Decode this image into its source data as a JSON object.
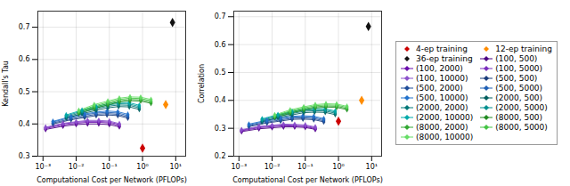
{
  "chart_data": [
    {
      "type": "line",
      "xlabel": "Computational Cost per Network (PFLOPs)",
      "ylabel": "Kendall's Tau",
      "log": "x",
      "xlim": [
        0.0007,
        20
      ],
      "xticks": [
        {
          "value": 0.001,
          "label": "10⁻³"
        },
        {
          "value": 0.01,
          "label": "10⁻²"
        },
        {
          "value": 0.1,
          "label": "10⁻¹"
        },
        {
          "value": 1,
          "label": "10⁰"
        },
        {
          "value": 10,
          "label": "10¹"
        }
      ],
      "ylim": [
        0.3,
        0.75
      ],
      "yticks": [
        0.3,
        0.4,
        0.5,
        0.6,
        0.7
      ],
      "grid": true,
      "marker": "diamond",
      "series": [
        {
          "name": "4-ep training",
          "type": "scatter",
          "color": "#cc0000",
          "x": [
            1.0
          ],
          "values": [
            0.325
          ]
        },
        {
          "name": "12-ep training",
          "type": "scatter",
          "color": "#ff8c00",
          "x": [
            5.0
          ],
          "values": [
            0.46
          ]
        },
        {
          "name": "36-ep training",
          "type": "scatter",
          "color": "#111111",
          "x": [
            8.0
          ],
          "values": [
            0.715
          ]
        },
        {
          "name": "(100, 500)",
          "type": "line",
          "color": "#4b0082",
          "x": [
            0.0012,
            0.004,
            0.01,
            0.022,
            0.048,
            0.1,
            0.2
          ],
          "values": [
            0.383,
            0.393,
            0.398,
            0.4,
            0.4,
            0.398,
            0.391
          ]
        },
        {
          "name": "(100, 2000)",
          "type": "line",
          "color": "#6a0dad",
          "x": [
            0.0012,
            0.004,
            0.01,
            0.022,
            0.048,
            0.1,
            0.2
          ],
          "values": [
            0.386,
            0.397,
            0.402,
            0.405,
            0.405,
            0.403,
            0.395
          ]
        },
        {
          "name": "(100, 5000)",
          "type": "line",
          "color": "#7b2fbe",
          "x": [
            0.0012,
            0.004,
            0.01,
            0.022,
            0.048,
            0.1,
            0.2
          ],
          "values": [
            0.388,
            0.4,
            0.405,
            0.408,
            0.408,
            0.406,
            0.398
          ]
        },
        {
          "name": "(100, 10000)",
          "type": "line",
          "color": "#8c52cc",
          "x": [
            0.0012,
            0.004,
            0.01,
            0.022,
            0.048,
            0.1,
            0.2
          ],
          "values": [
            0.39,
            0.402,
            0.407,
            0.411,
            0.411,
            0.409,
            0.401
          ]
        },
        {
          "name": "(500, 500)",
          "type": "line",
          "color": "#1a3d7c",
          "x": [
            0.002,
            0.007,
            0.018,
            0.04,
            0.085,
            0.18,
            0.36
          ],
          "values": [
            0.4,
            0.413,
            0.42,
            0.426,
            0.428,
            0.426,
            0.418
          ]
        },
        {
          "name": "(500, 2000)",
          "type": "line",
          "color": "#1e4d99",
          "x": [
            0.002,
            0.007,
            0.018,
            0.04,
            0.085,
            0.18,
            0.36
          ],
          "values": [
            0.403,
            0.416,
            0.424,
            0.43,
            0.432,
            0.43,
            0.422
          ]
        },
        {
          "name": "(500, 5000)",
          "type": "line",
          "color": "#2060b5",
          "x": [
            0.002,
            0.007,
            0.018,
            0.04,
            0.085,
            0.18,
            0.36
          ],
          "values": [
            0.406,
            0.42,
            0.428,
            0.434,
            0.436,
            0.434,
            0.426
          ]
        },
        {
          "name": "(500, 10000)",
          "type": "line",
          "color": "#2272cc",
          "x": [
            0.002,
            0.007,
            0.018,
            0.04,
            0.085,
            0.18,
            0.36
          ],
          "values": [
            0.408,
            0.423,
            0.431,
            0.437,
            0.44,
            0.438,
            0.43
          ]
        },
        {
          "name": "(2000, 500)",
          "type": "line",
          "color": "#005f5f",
          "x": [
            0.005,
            0.015,
            0.04,
            0.09,
            0.19,
            0.4,
            0.8
          ],
          "values": [
            0.418,
            0.432,
            0.442,
            0.45,
            0.454,
            0.453,
            0.445
          ]
        },
        {
          "name": "(2000, 2000)",
          "type": "line",
          "color": "#007878",
          "x": [
            0.005,
            0.015,
            0.04,
            0.09,
            0.19,
            0.4,
            0.8
          ],
          "values": [
            0.422,
            0.436,
            0.447,
            0.455,
            0.459,
            0.458,
            0.45
          ]
        },
        {
          "name": "(2000, 5000)",
          "type": "line",
          "color": "#009090",
          "x": [
            0.005,
            0.015,
            0.04,
            0.09,
            0.19,
            0.4,
            0.8
          ],
          "values": [
            0.425,
            0.44,
            0.451,
            0.459,
            0.463,
            0.462,
            0.454
          ]
        },
        {
          "name": "(2000, 10000)",
          "type": "line",
          "color": "#00aaaa",
          "x": [
            0.005,
            0.015,
            0.04,
            0.09,
            0.19,
            0.4,
            0.8
          ],
          "values": [
            0.428,
            0.443,
            0.454,
            0.463,
            0.467,
            0.466,
            0.458
          ]
        },
        {
          "name": "(8000, 500)",
          "type": "line",
          "color": "#228b22",
          "x": [
            0.012,
            0.035,
            0.09,
            0.2,
            0.42,
            0.88,
            1.8
          ],
          "values": [
            0.432,
            0.448,
            0.459,
            0.468,
            0.472,
            0.471,
            0.464
          ]
        },
        {
          "name": "(8000, 2000)",
          "type": "line",
          "color": "#32a832",
          "x": [
            0.012,
            0.035,
            0.09,
            0.2,
            0.42,
            0.88,
            1.8
          ],
          "values": [
            0.436,
            0.452,
            0.463,
            0.472,
            0.476,
            0.475,
            0.468
          ]
        },
        {
          "name": "(8000, 5000)",
          "type": "line",
          "color": "#44c444",
          "x": [
            0.012,
            0.035,
            0.09,
            0.2,
            0.42,
            0.88,
            1.8
          ],
          "values": [
            0.439,
            0.456,
            0.467,
            0.476,
            0.48,
            0.479,
            0.472
          ]
        },
        {
          "name": "(8000, 10000)",
          "type": "line",
          "color": "#66dd66",
          "x": [
            0.012,
            0.035,
            0.09,
            0.2,
            0.42,
            0.88,
            1.8
          ],
          "values": [
            0.442,
            0.46,
            0.471,
            0.48,
            0.484,
            0.483,
            0.476
          ]
        }
      ]
    },
    {
      "type": "line",
      "xlabel": "Computational Cost per Network (PFLOPs)",
      "ylabel": "Correlation",
      "log": "x",
      "xlim": [
        0.0007,
        20
      ],
      "xticks": [
        {
          "value": 0.001,
          "label": "10⁻³"
        },
        {
          "value": 0.01,
          "label": "10⁻²"
        },
        {
          "value": 0.1,
          "label": "10⁻¹"
        },
        {
          "value": 1,
          "label": "10⁰"
        },
        {
          "value": 10,
          "label": "10¹"
        }
      ],
      "ylim": [
        0.2,
        0.72
      ],
      "yticks": [
        0.2,
        0.3,
        0.4,
        0.5,
        0.6,
        0.7
      ],
      "grid": true,
      "marker": "diamond",
      "legend": "right",
      "series": [
        {
          "name": "4-ep training",
          "type": "scatter",
          "color": "#cc0000",
          "x": [
            1.0
          ],
          "values": [
            0.325
          ]
        },
        {
          "name": "12-ep training",
          "type": "scatter",
          "color": "#ff8c00",
          "x": [
            5.0
          ],
          "values": [
            0.4
          ]
        },
        {
          "name": "36-ep training",
          "type": "scatter",
          "color": "#111111",
          "x": [
            8.0
          ],
          "values": [
            0.665
          ]
        },
        {
          "name": "(100, 500)",
          "type": "line",
          "color": "#4b0082",
          "x": [
            0.0012,
            0.004,
            0.01,
            0.022,
            0.048,
            0.1,
            0.2
          ],
          "values": [
            0.288,
            0.298,
            0.302,
            0.305,
            0.305,
            0.303,
            0.296
          ]
        },
        {
          "name": "(100, 2000)",
          "type": "line",
          "color": "#6a0dad",
          "x": [
            0.0012,
            0.004,
            0.01,
            0.022,
            0.048,
            0.1,
            0.2
          ],
          "values": [
            0.291,
            0.302,
            0.306,
            0.309,
            0.308,
            0.306,
            0.299
          ]
        },
        {
          "name": "(100, 5000)",
          "type": "line",
          "color": "#7b2fbe",
          "x": [
            0.0012,
            0.004,
            0.01,
            0.022,
            0.048,
            0.1,
            0.2
          ],
          "values": [
            0.293,
            0.305,
            0.309,
            0.312,
            0.311,
            0.309,
            0.302
          ]
        },
        {
          "name": "(100, 10000)",
          "type": "line",
          "color": "#8c52cc",
          "x": [
            0.0012,
            0.004,
            0.01,
            0.022,
            0.048,
            0.1,
            0.2
          ],
          "values": [
            0.295,
            0.307,
            0.311,
            0.315,
            0.314,
            0.312,
            0.305
          ]
        },
        {
          "name": "(500, 500)",
          "type": "line",
          "color": "#1a3d7c",
          "x": [
            0.002,
            0.007,
            0.018,
            0.04,
            0.085,
            0.18,
            0.36
          ],
          "values": [
            0.306,
            0.319,
            0.326,
            0.332,
            0.333,
            0.331,
            0.323
          ]
        },
        {
          "name": "(500, 2000)",
          "type": "line",
          "color": "#1e4d99",
          "x": [
            0.002,
            0.007,
            0.018,
            0.04,
            0.085,
            0.18,
            0.36
          ],
          "values": [
            0.309,
            0.322,
            0.33,
            0.336,
            0.337,
            0.335,
            0.327
          ]
        },
        {
          "name": "(500, 5000)",
          "type": "line",
          "color": "#2060b5",
          "x": [
            0.002,
            0.007,
            0.018,
            0.04,
            0.085,
            0.18,
            0.36
          ],
          "values": [
            0.312,
            0.326,
            0.334,
            0.34,
            0.341,
            0.339,
            0.331
          ]
        },
        {
          "name": "(500, 10000)",
          "type": "line",
          "color": "#2272cc",
          "x": [
            0.002,
            0.007,
            0.018,
            0.04,
            0.085,
            0.18,
            0.36
          ],
          "values": [
            0.315,
            0.329,
            0.337,
            0.343,
            0.345,
            0.343,
            0.335
          ]
        },
        {
          "name": "(2000, 500)",
          "type": "line",
          "color": "#005f5f",
          "x": [
            0.005,
            0.015,
            0.04,
            0.09,
            0.19,
            0.4,
            0.8
          ],
          "values": [
            0.324,
            0.338,
            0.348,
            0.356,
            0.358,
            0.357,
            0.349
          ]
        },
        {
          "name": "(2000, 2000)",
          "type": "line",
          "color": "#007878",
          "x": [
            0.005,
            0.015,
            0.04,
            0.09,
            0.19,
            0.4,
            0.8
          ],
          "values": [
            0.328,
            0.342,
            0.353,
            0.361,
            0.363,
            0.362,
            0.354
          ]
        },
        {
          "name": "(2000, 5000)",
          "type": "line",
          "color": "#009090",
          "x": [
            0.005,
            0.015,
            0.04,
            0.09,
            0.19,
            0.4,
            0.8
          ],
          "values": [
            0.331,
            0.346,
            0.357,
            0.365,
            0.367,
            0.366,
            0.358
          ]
        },
        {
          "name": "(2000, 10000)",
          "type": "line",
          "color": "#00aaaa",
          "x": [
            0.005,
            0.015,
            0.04,
            0.09,
            0.19,
            0.4,
            0.8
          ],
          "values": [
            0.334,
            0.349,
            0.36,
            0.369,
            0.371,
            0.37,
            0.362
          ]
        },
        {
          "name": "(8000, 500)",
          "type": "line",
          "color": "#228b22",
          "x": [
            0.012,
            0.035,
            0.09,
            0.2,
            0.42,
            0.88,
            1.8
          ],
          "values": [
            0.338,
            0.354,
            0.365,
            0.373,
            0.376,
            0.375,
            0.367
          ]
        },
        {
          "name": "(8000, 2000)",
          "type": "line",
          "color": "#32a832",
          "x": [
            0.012,
            0.035,
            0.09,
            0.2,
            0.42,
            0.88,
            1.8
          ],
          "values": [
            0.342,
            0.358,
            0.369,
            0.377,
            0.38,
            0.379,
            0.371
          ]
        },
        {
          "name": "(8000, 5000)",
          "type": "line",
          "color": "#44c444",
          "x": [
            0.012,
            0.035,
            0.09,
            0.2,
            0.42,
            0.88,
            1.8
          ],
          "values": [
            0.345,
            0.362,
            0.373,
            0.381,
            0.384,
            0.383,
            0.375
          ]
        },
        {
          "name": "(8000, 10000)",
          "type": "line",
          "color": "#66dd66",
          "x": [
            0.012,
            0.035,
            0.09,
            0.2,
            0.42,
            0.88,
            1.8
          ],
          "values": [
            0.348,
            0.366,
            0.377,
            0.385,
            0.388,
            0.387,
            0.379
          ]
        }
      ]
    }
  ]
}
